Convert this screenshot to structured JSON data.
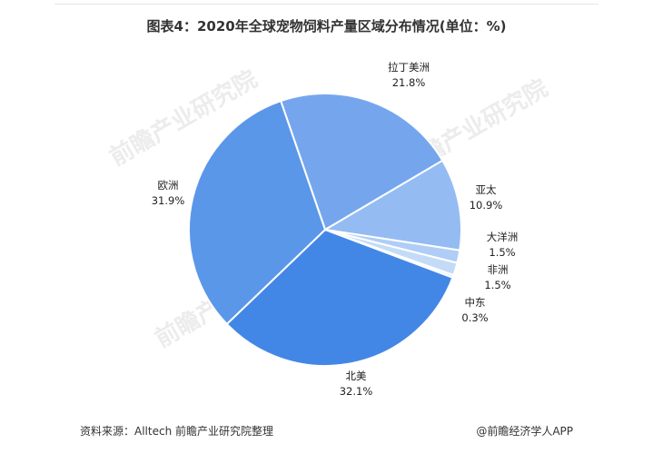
{
  "chart_data": {
    "type": "pie",
    "title": "图表4：2020年全球宠物饲料产量区域分布情况(单位：%)",
    "slices": [
      {
        "label": "拉丁美洲",
        "value": 21.8,
        "value_label": "21.8%",
        "color": "#75a6ed"
      },
      {
        "label": "亚太",
        "value": 10.9,
        "value_label": "10.9%",
        "color": "#94bcf3"
      },
      {
        "label": "大洋洲",
        "value": 1.5,
        "value_label": "1.5%",
        "color": "#afcdf6"
      },
      {
        "label": "非洲",
        "value": 1.5,
        "value_label": "1.5%",
        "color": "#c4dbf8"
      },
      {
        "label": "中东",
        "value": 0.3,
        "value_label": "0.3%",
        "color": "#d8e7fb"
      },
      {
        "label": "北美",
        "value": 32.1,
        "value_label": "32.1%",
        "color": "#4387e6"
      },
      {
        "label": "欧洲",
        "value": 31.9,
        "value_label": "31.9%",
        "color": "#5b97e9"
      }
    ]
  },
  "footer": {
    "source": "资料来源：Alltech 前瞻产业研究院整理",
    "credit": "@前瞻经济学人APP"
  },
  "watermark": "前瞻产业研究院"
}
